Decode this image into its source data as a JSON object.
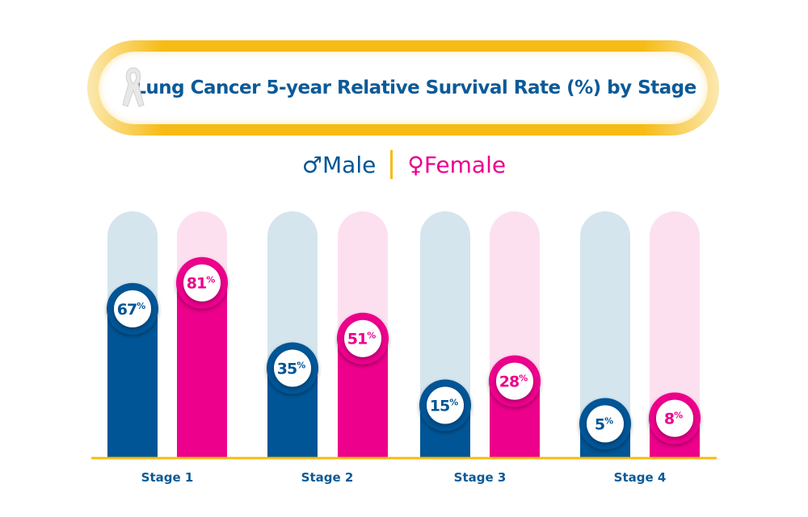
{
  "chart_data": {
    "type": "bar",
    "title": "Lung Cancer 5-year Relative Survival Rate (%) by Stage",
    "categories": [
      "Stage 1",
      "Stage 2",
      "Stage 3",
      "Stage 4"
    ],
    "series": [
      {
        "name": "Male",
        "symbol": "♂",
        "values": [
          67,
          35,
          15,
          5
        ],
        "color": "#005596",
        "track_color": "#d4e5ee"
      },
      {
        "name": "Female",
        "symbol": "♀",
        "values": [
          81,
          51,
          28,
          8
        ],
        "color": "#ec008c",
        "track_color": "#fde0f0"
      }
    ],
    "value_suffix": "%",
    "ylim": [
      0,
      100
    ],
    "legend": "top-center",
    "grid": false,
    "accent_color": "#f7bb16",
    "icon": "awareness-ribbon-icon"
  }
}
